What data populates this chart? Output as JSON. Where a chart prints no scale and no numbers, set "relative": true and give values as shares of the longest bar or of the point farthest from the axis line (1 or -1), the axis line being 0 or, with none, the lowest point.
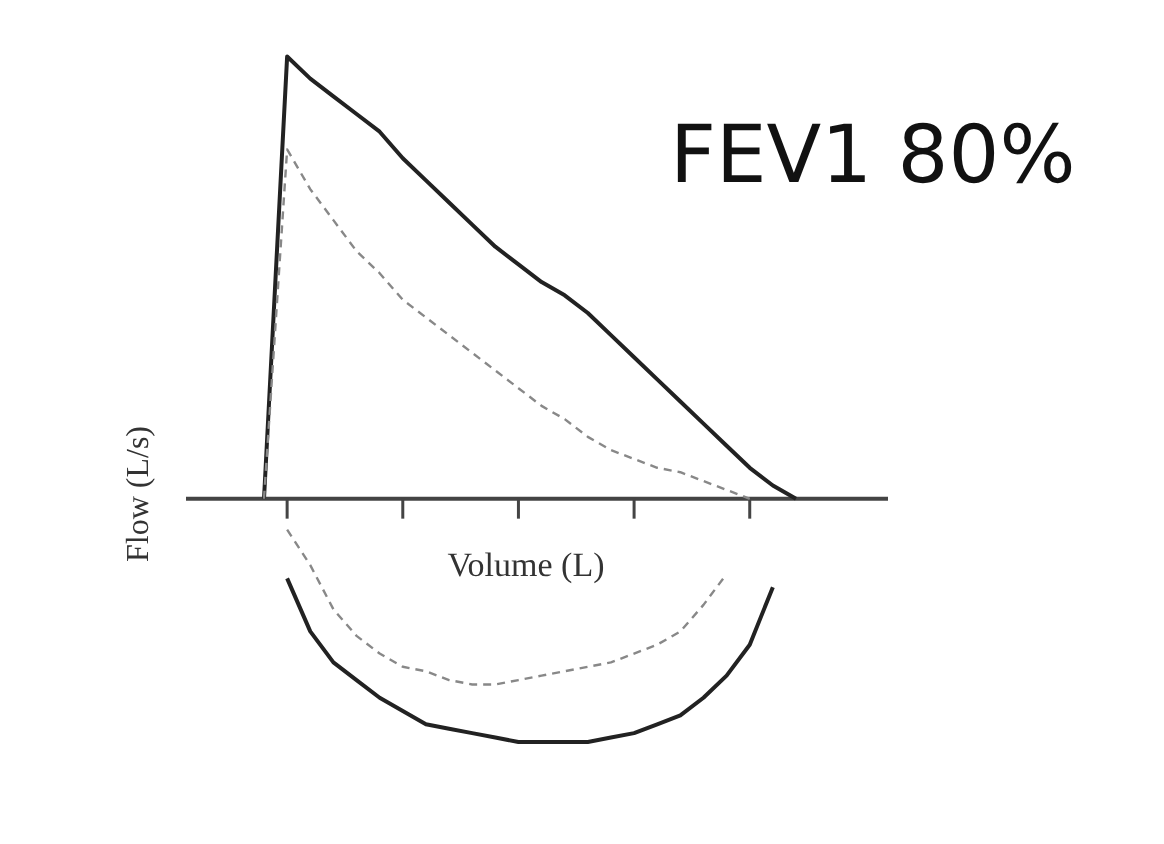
{
  "chart_data": {
    "type": "line",
    "relative": true,
    "xlabel": "Volume (L)",
    "ylabel": "Flow (L/s)",
    "annotations": [
      "FEV1 80%"
    ],
    "categories": [
      null,
      null,
      null,
      null,
      null,
      null,
      null,
      null,
      null,
      null,
      null,
      null,
      null,
      null,
      null,
      null,
      null,
      null,
      null,
      null,
      null,
      null,
      null,
      null
    ],
    "grid": false,
    "legend": false,
    "marker": "none",
    "series": [
      {
        "color": "#222222",
        "line_style": "solid",
        "values": [
          0,
          1,
          0.95,
          0.91,
          0.87,
          0.83,
          0.77,
          0.72,
          0.67,
          0.62,
          0.57,
          0.53,
          0.49,
          0.46,
          0.42,
          0.37,
          0.32,
          0.27,
          0.22,
          0.17,
          0.12,
          0.07,
          0.03,
          0
        ]
      },
      {
        "color": "#222222",
        "line_style": "solid",
        "values": [
          null,
          -0.18,
          -0.3,
          -0.37,
          -0.41,
          -0.45,
          -0.48,
          -0.51,
          -0.52,
          -0.53,
          -0.54,
          -0.55,
          -0.55,
          -0.55,
          -0.55,
          -0.54,
          -0.53,
          -0.51,
          -0.49,
          -0.45,
          -0.4,
          -0.33,
          -0.2,
          null
        ]
      },
      {
        "color": "#888888",
        "line_style": "dashed",
        "values": [
          0,
          0.79,
          0.7,
          0.63,
          0.56,
          0.51,
          0.45,
          0.41,
          0.37,
          0.33,
          0.29,
          0.25,
          0.21,
          0.18,
          0.14,
          0.11,
          0.09,
          0.07,
          0.06,
          0.04,
          0.02,
          0,
          null,
          null
        ]
      },
      {
        "color": "#888888",
        "line_style": "dashed",
        "values": [
          null,
          -0.07,
          -0.15,
          -0.25,
          -0.31,
          -0.35,
          -0.38,
          -0.39,
          -0.41,
          -0.42,
          -0.42,
          -0.41,
          -0.4,
          -0.39,
          -0.38,
          -0.37,
          -0.35,
          -0.33,
          -0.3,
          -0.24,
          -0.17,
          null,
          null,
          null
        ]
      }
    ]
  }
}
